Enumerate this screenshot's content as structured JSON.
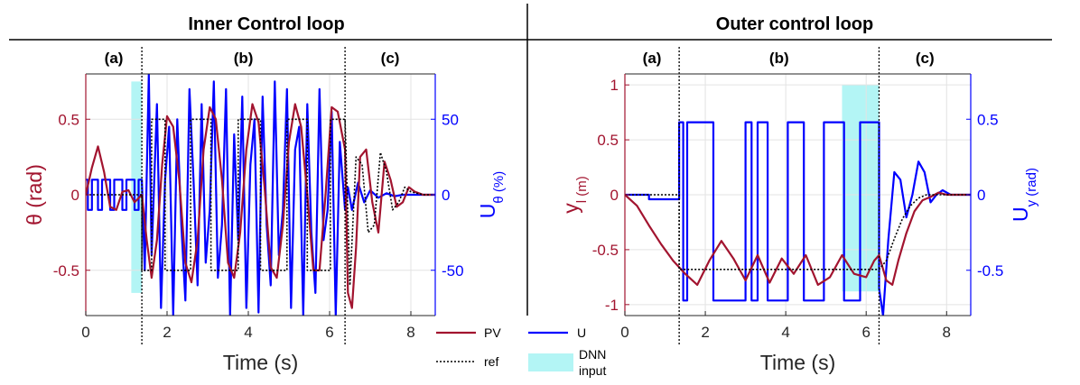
{
  "header": {
    "left_title": "Inner Control loop",
    "right_title": "Outer control loop"
  },
  "colors": {
    "pv": "#a2142f",
    "u": "#0000ff",
    "ref": "#000000",
    "dnn": "#b3f5f5",
    "grid": "#e3e3e3"
  },
  "legend": {
    "pv": "PV",
    "u": "U",
    "ref": "ref",
    "dnn_line1": "DNN",
    "dnn_line2": "input"
  },
  "chart_data": [
    {
      "type": "line",
      "id": "inner",
      "xlabel": "Time (s)",
      "ylabel_left": "θ (rad)",
      "ylabel_right": "U_θ (%)",
      "xlim": [
        0,
        8.6
      ],
      "ylim_left": [
        -0.8,
        0.8
      ],
      "ylim_right": [
        -80,
        80
      ],
      "xticks": [
        0,
        2,
        4,
        6,
        8
      ],
      "yticks_left": [
        -0.5,
        0,
        0.5
      ],
      "yticks_left_labels": [
        "-0.5",
        "0",
        "0.5"
      ],
      "yticks_right": [
        -50,
        0,
        50
      ],
      "yticks_right_labels": [
        "-50",
        "0",
        "50"
      ],
      "grid": true,
      "phases": [
        {
          "label": "(a)",
          "x_from": 0,
          "x_to": 1.38
        },
        {
          "label": "(b)",
          "x_from": 1.38,
          "x_to": 6.38
        },
        {
          "label": "(c)",
          "x_from": 6.38,
          "x_to": 8.6
        }
      ],
      "phase_boundaries": [
        1.38,
        6.38
      ],
      "dnn_input_window": {
        "x_from": 1.12,
        "x_to": 1.38,
        "y_from": -0.65,
        "y_to": 0.75
      },
      "series": [
        {
          "name": "ref",
          "axis": "left",
          "x": [
            0,
            1.38,
            1.38,
            1.62,
            1.62,
            1.95,
            1.95,
            2.58,
            2.58,
            3.08,
            3.08,
            3.75,
            3.75,
            4.3,
            4.3,
            4.95,
            4.95,
            5.45,
            5.45,
            6.02,
            6.02,
            6.38,
            6.5,
            6.65,
            6.8,
            6.95,
            7.1,
            7.25,
            7.4,
            7.55,
            7.7,
            7.85,
            8.0,
            8.3,
            8.6
          ],
          "y": [
            0,
            0,
            -0.5,
            -0.5,
            0.5,
            0.5,
            -0.5,
            -0.5,
            0.5,
            0.5,
            -0.5,
            -0.5,
            0.5,
            0.5,
            -0.5,
            -0.5,
            0.5,
            0.5,
            -0.5,
            -0.5,
            0.5,
            0.5,
            -0.6,
            0.25,
            0.2,
            -0.25,
            -0.2,
            0.28,
            0.15,
            -0.1,
            -0.05,
            0.05,
            0.02,
            0,
            0
          ]
        },
        {
          "name": "PV",
          "axis": "left",
          "x": [
            0,
            0.15,
            0.3,
            0.45,
            0.6,
            0.75,
            0.9,
            1.05,
            1.2,
            1.38,
            1.5,
            1.62,
            1.75,
            1.88,
            2.0,
            2.15,
            2.3,
            2.45,
            2.6,
            2.75,
            2.9,
            3.05,
            3.2,
            3.35,
            3.5,
            3.65,
            3.8,
            3.95,
            4.1,
            4.25,
            4.4,
            4.55,
            4.7,
            4.85,
            5.0,
            5.15,
            5.3,
            5.45,
            5.6,
            5.75,
            5.9,
            6.05,
            6.2,
            6.38,
            6.45,
            6.55,
            6.65,
            6.75,
            6.9,
            7.05,
            7.2,
            7.35,
            7.5,
            7.65,
            7.8,
            7.95,
            8.1,
            8.3,
            8.6
          ],
          "y": [
            0,
            0.18,
            0.32,
            0.15,
            -0.08,
            -0.1,
            0.02,
            0.03,
            -0.05,
            0,
            -0.3,
            -0.55,
            -0.3,
            0.2,
            0.52,
            0.45,
            0.1,
            -0.45,
            -0.58,
            -0.3,
            0.3,
            0.58,
            0.5,
            0.1,
            -0.45,
            -0.55,
            -0.25,
            0.3,
            0.6,
            0.48,
            0.05,
            -0.48,
            -0.55,
            -0.2,
            0.35,
            0.6,
            0.45,
            0.0,
            -0.5,
            -0.5,
            0.0,
            0.58,
            0.55,
            0.3,
            -0.65,
            -0.75,
            -0.35,
            0.25,
            0.3,
            -0.05,
            -0.25,
            0.22,
            0.1,
            -0.08,
            -0.05,
            0.05,
            0.02,
            0.0,
            0.0
          ]
        },
        {
          "name": "U",
          "axis": "right",
          "x": [
            0,
            0.05,
            0.05,
            0.15,
            0.15,
            0.3,
            0.3,
            0.4,
            0.4,
            0.6,
            0.6,
            0.7,
            0.7,
            0.9,
            0.9,
            1.0,
            1.0,
            1.2,
            1.2,
            1.3,
            1.3,
            1.38,
            1.45,
            1.55,
            1.62,
            1.75,
            1.85,
            1.95,
            2.05,
            2.15,
            2.25,
            2.35,
            2.45,
            2.55,
            2.65,
            2.75,
            2.85,
            2.95,
            3.05,
            3.15,
            3.25,
            3.35,
            3.45,
            3.55,
            3.65,
            3.75,
            3.85,
            3.95,
            4.05,
            4.15,
            4.25,
            4.35,
            4.45,
            4.55,
            4.65,
            4.75,
            4.85,
            4.95,
            5.05,
            5.15,
            5.25,
            5.35,
            5.45,
            5.55,
            5.65,
            5.75,
            5.85,
            5.95,
            6.05,
            6.15,
            6.25,
            6.38,
            6.45,
            6.55,
            6.7,
            6.85,
            7.0,
            7.2,
            7.4,
            7.6,
            7.8,
            8.0,
            8.3,
            8.6
          ],
          "y": [
            10,
            10,
            -10,
            -10,
            10,
            10,
            -10,
            -10,
            10,
            10,
            -10,
            -10,
            10,
            10,
            -10,
            -10,
            10,
            10,
            -10,
            -10,
            10,
            10,
            -50,
            80,
            -40,
            60,
            -75,
            10,
            45,
            -80,
            50,
            -20,
            -70,
            70,
            10,
            -60,
            60,
            -45,
            -10,
            75,
            -55,
            -20,
            70,
            -80,
            40,
            -30,
            65,
            -75,
            20,
            50,
            -78,
            65,
            -20,
            -60,
            75,
            -40,
            -10,
            70,
            -75,
            30,
            45,
            -80,
            60,
            -25,
            -65,
            70,
            -30,
            -10,
            55,
            -80,
            35,
            -10,
            5,
            -10,
            8,
            -5,
            3,
            -2,
            1,
            -1,
            0,
            0,
            0,
            0
          ]
        }
      ]
    },
    {
      "type": "line",
      "id": "outer",
      "xlabel": "Time (s)",
      "ylabel_left": "y_l (m)",
      "ylabel_right": "U_y (rad)",
      "xlim": [
        0,
        8.6
      ],
      "ylim_left": [
        -1.1,
        1.1
      ],
      "ylim_right": [
        -0.8,
        0.8
      ],
      "xticks": [
        0,
        2,
        4,
        6,
        8
      ],
      "yticks_left": [
        -1,
        -0.5,
        0,
        0.5,
        1
      ],
      "yticks_left_labels": [
        "-1",
        "-0.5",
        "0",
        "0.5",
        "1"
      ],
      "yticks_right": [
        -0.5,
        0,
        0.5
      ],
      "yticks_right_labels": [
        "-0.5",
        "0",
        "0.5"
      ],
      "grid": true,
      "phases": [
        {
          "label": "(a)",
          "x_from": 0,
          "x_to": 1.35
        },
        {
          "label": "(b)",
          "x_from": 1.35,
          "x_to": 6.32
        },
        {
          "label": "(c)",
          "x_from": 6.32,
          "x_to": 8.6
        }
      ],
      "phase_boundaries": [
        1.35,
        6.32
      ],
      "dnn_input_window": {
        "x_from": 5.4,
        "x_to": 6.32,
        "y_from": -0.88,
        "y_to": 1.0
      },
      "series": [
        {
          "name": "ref",
          "axis": "left",
          "x": [
            0,
            1.35,
            1.35,
            6.32,
            6.5,
            6.7,
            6.9,
            7.1,
            7.3,
            7.5,
            7.7,
            8.0,
            8.6
          ],
          "y": [
            0,
            0,
            -0.68,
            -0.68,
            -0.6,
            -0.4,
            -0.22,
            -0.1,
            -0.03,
            0.0,
            0.0,
            0.0,
            0.0
          ]
        },
        {
          "name": "PV",
          "axis": "left",
          "x": [
            0,
            0.3,
            0.6,
            0.9,
            1.2,
            1.5,
            1.8,
            2.1,
            2.4,
            2.7,
            3.0,
            3.3,
            3.6,
            3.9,
            4.2,
            4.5,
            4.8,
            5.1,
            5.4,
            5.7,
            6.0,
            6.2,
            6.32,
            6.5,
            6.65,
            6.8,
            7.0,
            7.2,
            7.4,
            7.6,
            7.8,
            8.0,
            8.3,
            8.6
          ],
          "y": [
            0,
            -0.1,
            -0.28,
            -0.45,
            -0.6,
            -0.72,
            -0.82,
            -0.6,
            -0.42,
            -0.58,
            -0.78,
            -0.55,
            -0.8,
            -0.58,
            -0.72,
            -0.55,
            -0.82,
            -0.75,
            -0.55,
            -0.72,
            -0.75,
            -0.6,
            -0.55,
            -0.78,
            -0.82,
            -0.6,
            -0.35,
            -0.15,
            -0.05,
            -0.02,
            0.02,
            0.0,
            0.0,
            0.0
          ]
        },
        {
          "name": "U",
          "axis": "right",
          "x": [
            0,
            0.6,
            0.6,
            1.35,
            1.35,
            1.45,
            1.45,
            1.55,
            1.55,
            2.2,
            2.2,
            3.0,
            3.0,
            3.15,
            3.15,
            3.3,
            3.3,
            3.55,
            3.55,
            4.05,
            4.05,
            4.45,
            4.45,
            4.95,
            4.95,
            5.45,
            5.45,
            5.85,
            5.85,
            6.32,
            6.32,
            6.42,
            6.55,
            6.7,
            6.85,
            7.0,
            7.15,
            7.3,
            7.45,
            7.6,
            7.75,
            7.9,
            8.1,
            8.3,
            8.6
          ],
          "y": [
            0,
            0,
            -0.03,
            -0.03,
            0.48,
            0.48,
            -0.7,
            -0.7,
            0.48,
            0.48,
            -0.7,
            -0.7,
            0.48,
            0.48,
            -0.7,
            -0.7,
            0.48,
            0.48,
            -0.7,
            -0.7,
            0.48,
            0.48,
            -0.7,
            -0.7,
            0.48,
            0.48,
            -0.7,
            -0.7,
            0.48,
            0.48,
            -0.62,
            -0.8,
            -0.3,
            0.15,
            0.1,
            -0.15,
            0.0,
            0.22,
            0.15,
            -0.05,
            0.0,
            0.03,
            0.0,
            0.0,
            0.0
          ]
        }
      ]
    }
  ]
}
